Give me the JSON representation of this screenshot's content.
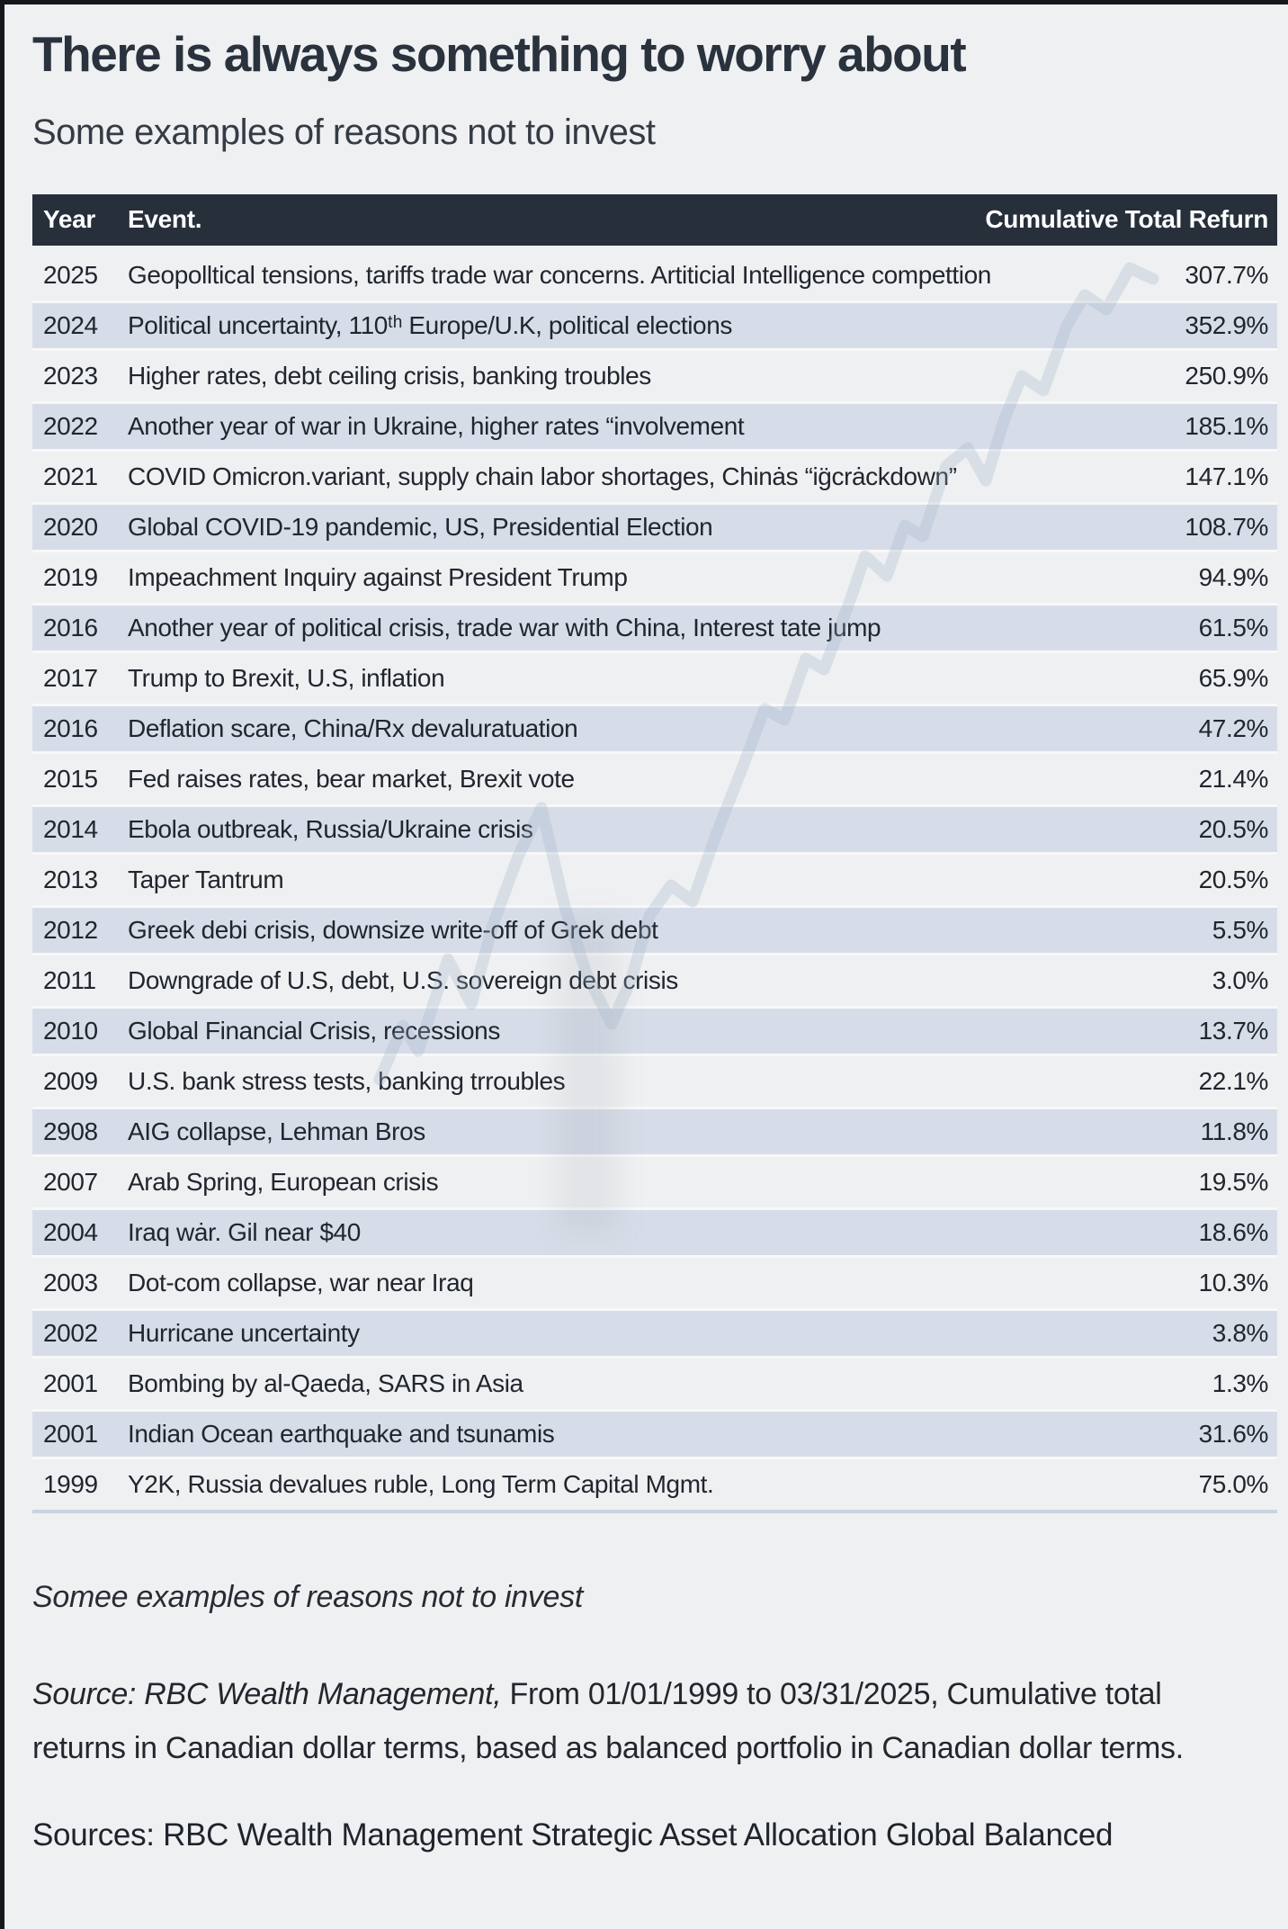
{
  "title": "There is always something to worry about",
  "subtitle": "Some examples of reasons not to invest",
  "table": {
    "columns": [
      "Year",
      "Event.",
      "Cumulative Total Refurn"
    ],
    "rows": [
      {
        "year": "2025",
        "event": "Geopolltical tensions, tariffs trade war concerns. Artiticial Intelligence compettion",
        "return": "307.7%"
      },
      {
        "year": "2024",
        "event": "Political uncertainty, 110ᵗʰ Europe/U.K, political elections",
        "return": "352.9%"
      },
      {
        "year": "2023",
        "event": "Higher rates, debt ceiling crisis, banking troubles",
        "return": "250.9%"
      },
      {
        "year": "2022",
        "event": "Another year of war in Ukraine, higher rates “involvement",
        "return": "185.1%"
      },
      {
        "year": "2021",
        "event": "COVID Omicron.variant, supply chain labor shortages, Chinȧs “ig̈crȧckdown”",
        "return": "147.1%"
      },
      {
        "year": "2020",
        "event": "Global COVID-19 pandemic, US, Presidential Election",
        "return": "108.7%"
      },
      {
        "year": "2019",
        "event": "Impeachment Inquiry against President Trump",
        "return": "94.9%"
      },
      {
        "year": "2016",
        "event": "Another year of political crisis, trade war with China,  Interest tate jump",
        "return": "61.5%"
      },
      {
        "year": "2017",
        "event": "Trump to Brexit, U.S, inflation",
        "return": "65.9%"
      },
      {
        "year": "2016",
        "event": "Deflation scare, China/Rx devaluratuation",
        "return": "47.2%"
      },
      {
        "year": "2015",
        "event": "Fed raises rates, bear market, Brexit vote",
        "return": "21.4%"
      },
      {
        "year": "2014",
        "event": "Ebola outbreak, Russia/Ukraine crisis",
        "return": "20.5%"
      },
      {
        "year": "2013",
        "event": "Taper Tantrum",
        "return": "20.5%"
      },
      {
        "year": "2012",
        "event": "Greek debi crisis, downsize write-off of Grek debt",
        "return": "5.5%"
      },
      {
        "year": "2011",
        "event": "Downgrade of U.S, debt, U.S. sovereign debt crisis",
        "return": "3.0%"
      },
      {
        "year": "2010",
        "event": "Global Financial Crisis, recessions",
        "return": "13.7%"
      },
      {
        "year": "2009",
        "event": "U.S. bank stress tests, banking trroubles",
        "return": "22.1%"
      },
      {
        "year": "2908",
        "event": "AIG collapse, Lehman Bros",
        "return": "11.8%"
      },
      {
        "year": "2007",
        "event": "Arab Spring, European crisis",
        "return": "19.5%"
      },
      {
        "year": "2004",
        "event": "Iraq wȧr. Gil near $40",
        "return": "18.6%"
      },
      {
        "year": "2003",
        "event": "Dot-com collapse, war near Iraq",
        "return": "10.3%"
      },
      {
        "year": "2002",
        "event": "Hurricane uncertainty",
        "return": "3.8%"
      },
      {
        "year": "2001",
        "event": "Bombing by al-Qaeda, SARS in Asia",
        "return": "1.3%"
      },
      {
        "year": "2001",
        "event": "Indian Ocean earthquake and tsunamis",
        "return": "31.6%"
      },
      {
        "year": "1999",
        "event": "Y2K, Russia devalues ruble, Long Term Capital Mgmt.",
        "return": "75.0%"
      }
    ]
  },
  "chart_data": {
    "type": "table",
    "title": "There is always something to worry about",
    "subtitle": "Some examples of reasons not to invest",
    "columns": [
      "Year",
      "Event.",
      "Cumulative Total Refurn"
    ],
    "years": [
      "2025",
      "2024",
      "2023",
      "2022",
      "2021",
      "2020",
      "2019",
      "2016",
      "2017",
      "2016",
      "2015",
      "2014",
      "2013",
      "2012",
      "2011",
      "2010",
      "2009",
      "2908",
      "2007",
      "2004",
      "2003",
      "2002",
      "2001",
      "2001",
      "1999"
    ],
    "cumulative_total_return_pct": [
      307.7,
      352.9,
      250.9,
      185.1,
      147.1,
      108.7,
      94.9,
      61.5,
      65.9,
      47.2,
      21.4,
      20.5,
      20.5,
      5.5,
      3.0,
      13.7,
      22.1,
      11.8,
      19.5,
      18.6,
      10.3,
      3.8,
      1.3,
      31.6,
      75.0
    ]
  },
  "footnote": "Somee examples of reasons not to invest",
  "source": {
    "lead_italic": "Source: RBC Wealth Management,",
    "rest": " From 01/01/1999 to 03/31/2025, Cumulative total returns in Canadian dollar terms, based as balanced portfolio in Canadian dollar terms."
  },
  "sources_line": "Sources: RBC Wealth Management Strategic Asset Allocation Global Balanced",
  "colors": {
    "page_background": "#eff0f2",
    "header_background": "#262f3a",
    "header_text": "#ffffff",
    "row_stripe": "#d7dde8",
    "body_text": "#20262e",
    "table_bottom_rule": "#c9d3e0",
    "edge_strip": "#14181d",
    "watermark_line": "#9fb0c6"
  }
}
